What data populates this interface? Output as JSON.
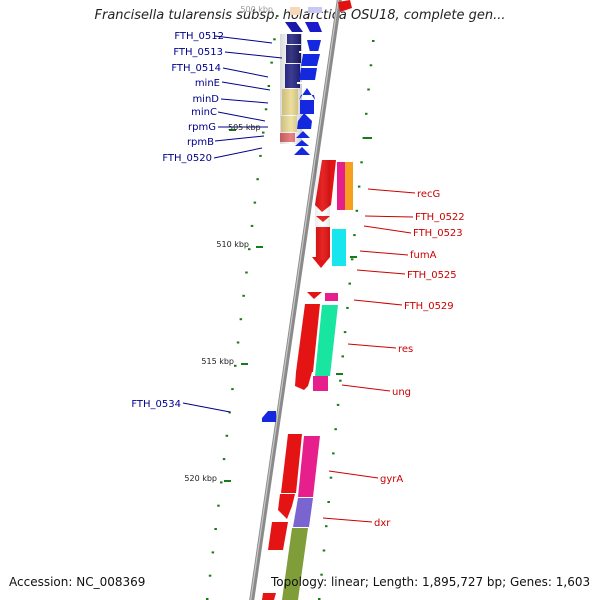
{
  "title": "Francisella tularensis subsp. holarctica OSU18, complete gen...",
  "footer": {
    "accession": "Accession: NC_008369",
    "summary": "Topology: linear; Length: 1,895,727 bp; Genes: 1,603"
  },
  "colors": {
    "backbone": "#8a8a8a",
    "kbp_tick": "#1a7a1a",
    "left_label": "#00008b",
    "right_label": "#cc0000"
  },
  "scale_labels": [
    {
      "text": "500 kbp",
      "kbp": 500
    },
    {
      "text": "505 kbp",
      "kbp": 505
    },
    {
      "text": "510 kbp",
      "kbp": 510
    },
    {
      "text": "515 kbp",
      "kbp": 515
    },
    {
      "text": "520 kbp",
      "kbp": 520
    }
  ],
  "gene_labels_left": [
    "FTH_0512",
    "FTH_0513",
    "FTH_0514",
    "minE",
    "minD",
    "minC",
    "rpmG",
    "rpmB",
    "FTH_0520",
    "FTH_0534"
  ],
  "gene_labels_right": [
    "recG",
    "FTH_0522",
    "FTH_0523",
    "fumA",
    "FTH_0525",
    "FTH_0529",
    "res",
    "ung",
    "gyrA",
    "dxr"
  ]
}
